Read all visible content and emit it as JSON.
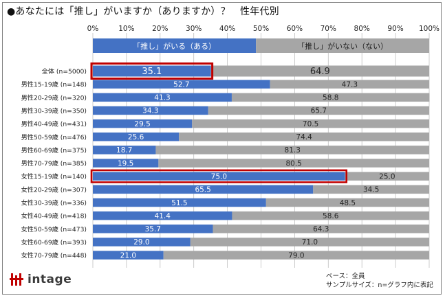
{
  "title": "●あなたには「推し」がいますか（ありますか）？　性年代別",
  "header_bar": {
    "left_label": "「推し」がいる（ある）",
    "right_label": "「推し」がいない（ない）",
    "left_share": 48.5
  },
  "footnote": {
    "base": "ベース：全員",
    "sample": "サンプルサイズ：n=グラフ内に表記"
  },
  "logo": {
    "text": "intage"
  },
  "colors": {
    "yes": "#4472c4",
    "no": "#a6a6a6",
    "highlight": "#c00000",
    "grid": "#bfbfbf",
    "label_on_yes": "#ffffff",
    "label_on_no": "#262626"
  },
  "chart_data": {
    "type": "bar",
    "orientation": "horizontal",
    "stacked": true,
    "title": "●あなたには「推し」がいますか（ありますか）？　性年代別",
    "xlim": [
      0,
      100
    ],
    "xticks": [
      "0%",
      "10%",
      "20%",
      "30%",
      "40%",
      "50%",
      "60%",
      "70%",
      "80%",
      "90%",
      "100%"
    ],
    "grid": true,
    "categories": [
      "全体 (n=5000)",
      "男性15-19歳 (n=148)",
      "男性20-29歳 (n=320)",
      "男性30-39歳 (n=350)",
      "男性40-49歳 (n=431)",
      "男性50-59歳 (n=476)",
      "男性60-69歳 (n=375)",
      "男性70-79歳 (n=385)",
      "女性15-19歳 (n=140)",
      "女性20-29歳 (n=307)",
      "女性30-39歳 (n=336)",
      "女性40-49歳 (n=418)",
      "女性50-59歳 (n=473)",
      "女性60-69歳 (n=393)",
      "女性70-79歳 (n=448)"
    ],
    "series": [
      {
        "name": "「推し」がいる（ある）",
        "values": [
          35.1,
          52.7,
          41.3,
          34.3,
          29.5,
          25.6,
          18.7,
          19.5,
          75.0,
          65.5,
          51.5,
          41.4,
          35.7,
          29.0,
          21.0
        ],
        "labels": [
          "35.1",
          "52.7",
          "41.3",
          "34.3",
          "29.5",
          "25.6",
          "18.7",
          "19.5",
          "75.0",
          "65.5",
          "51.5",
          "41.4",
          "35.7",
          "29.0",
          "21.0"
        ]
      },
      {
        "name": "「推し」がいない（ない）",
        "values": [
          64.9,
          47.3,
          58.8,
          65.7,
          70.5,
          74.4,
          81.3,
          80.5,
          25.0,
          34.5,
          48.5,
          58.6,
          64.3,
          71.0,
          79.0
        ],
        "labels": [
          "64.9",
          "47.3",
          "58.8",
          "65.7",
          "70.5",
          "74.4",
          "81.3",
          "80.5",
          "25.0",
          "34.5",
          "48.5",
          "58.6",
          "64.3",
          "71.0",
          "79.0"
        ]
      }
    ],
    "highlighted": [
      {
        "category": "全体 (n=5000)",
        "series": "「推し」がいる（ある）"
      },
      {
        "category": "女性15-19歳 (n=140)",
        "series": "「推し」がいる（ある）"
      }
    ]
  }
}
